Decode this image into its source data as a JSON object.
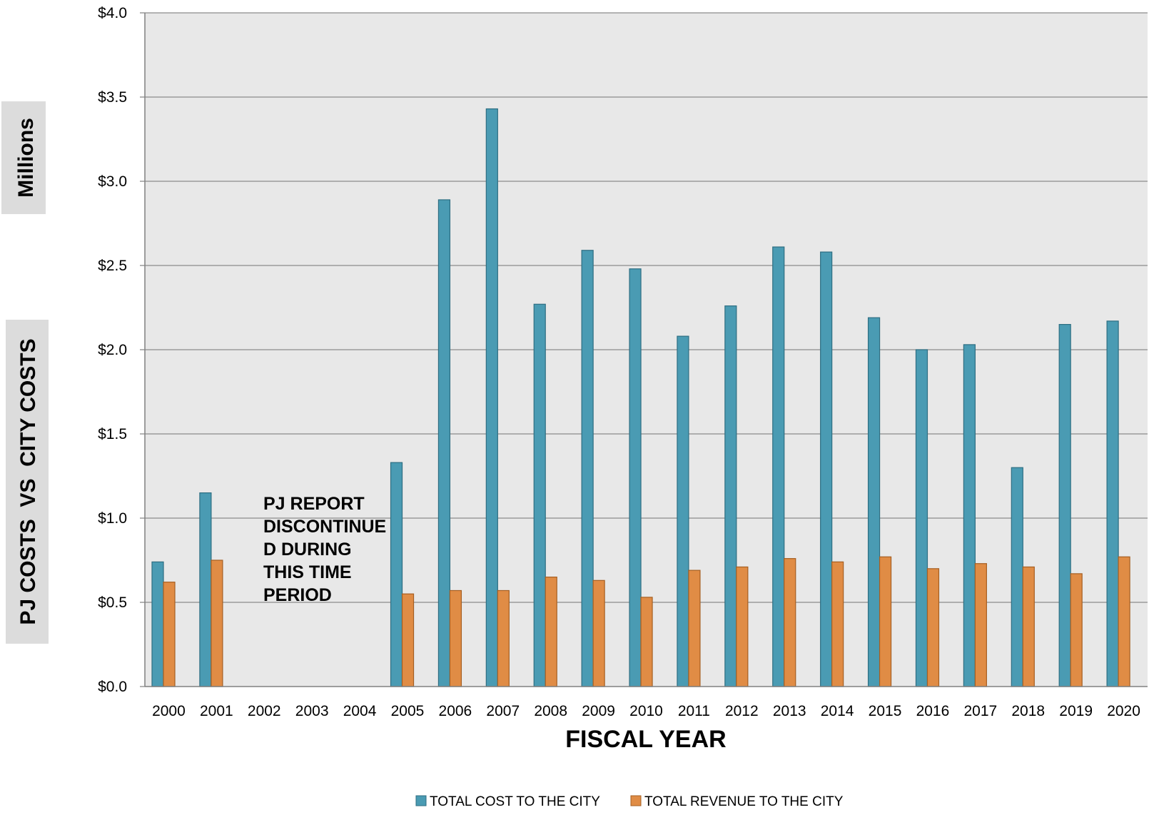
{
  "chart_data": {
    "type": "bar",
    "xlabel": "FISCAL YEAR",
    "ylabel": "PJ COSTS  VS  CITY COSTS",
    "yunit_label": "Millions",
    "ylim": [
      0,
      4
    ],
    "ytick_step": 0.5,
    "ytick_labels": [
      "$0.0",
      "$0.5",
      "$1.0",
      "$1.5",
      "$2.0",
      "$2.5",
      "$3.0",
      "$3.5",
      "$4.0"
    ],
    "grid": true,
    "legend_position": "bottom",
    "categories": [
      "2000",
      "2001",
      "2002",
      "2003",
      "2004",
      "2005",
      "2006",
      "2007",
      "2008",
      "2009",
      "2010",
      "2011",
      "2012",
      "2013",
      "2014",
      "2015",
      "2016",
      "2017",
      "2018",
      "2019",
      "2020"
    ],
    "series": [
      {
        "name": "TOTAL COST TO THE CITY",
        "color": "#4a9bb3",
        "values": [
          0.74,
          1.15,
          0,
          0,
          0,
          1.33,
          2.89,
          3.43,
          2.27,
          2.59,
          2.48,
          2.08,
          2.26,
          2.61,
          2.58,
          2.19,
          2.0,
          2.03,
          1.3,
          2.15,
          2.17
        ]
      },
      {
        "name": "TOTAL REVENUE TO THE CITY",
        "color": "#e08c45",
        "values": [
          0.62,
          0.75,
          0,
          0,
          0,
          0.55,
          0.57,
          0.57,
          0.65,
          0.63,
          0.53,
          0.69,
          0.71,
          0.76,
          0.74,
          0.77,
          0.7,
          0.73,
          0.71,
          0.67,
          0.77
        ]
      }
    ],
    "annotation": [
      "PJ REPORT",
      "DISCONTINUE",
      "D DURING",
      "THIS TIME",
      "PERIOD"
    ]
  }
}
